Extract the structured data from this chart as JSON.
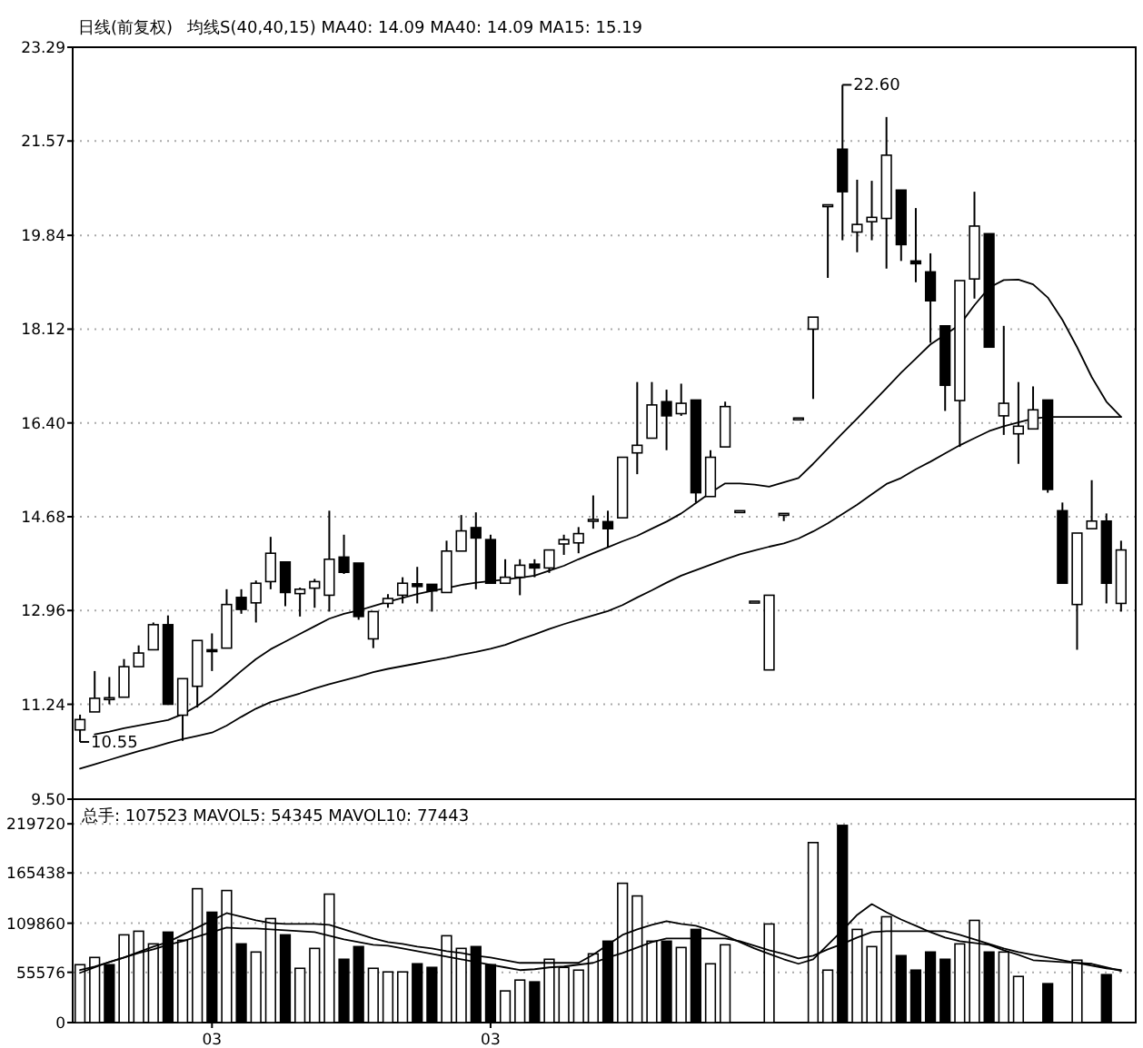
{
  "chart_data": [
    {
      "type": "candlestick",
      "title": "日线(前复权)",
      "subtitle": "均线S(40,40,15) MA40: 14.09 MA40: 14.09 MA15: 15.19",
      "categories": [
        null,
        null,
        null,
        null,
        null,
        null,
        null,
        null,
        null,
        null,
        null,
        null,
        null,
        null,
        null,
        null,
        null,
        null,
        null,
        null,
        null,
        null,
        null,
        null,
        null,
        null,
        null,
        null,
        null,
        null,
        null,
        null,
        null,
        null,
        null,
        null,
        null,
        null,
        null,
        null,
        null,
        null,
        null,
        null,
        null,
        null,
        null,
        null,
        null,
        null,
        null,
        null,
        null,
        null,
        null,
        null,
        null,
        null,
        null,
        null,
        null,
        null,
        null,
        null,
        null,
        null,
        null,
        null,
        null,
        null,
        null,
        null
      ],
      "ohlc": [
        [
          10.77,
          11.05,
          10.55,
          10.96
        ],
        [
          11.1,
          11.85,
          11.1,
          11.35
        ],
        [
          11.33,
          11.74,
          11.24,
          11.36
        ],
        [
          11.37,
          12.07,
          11.37,
          11.93
        ],
        [
          11.93,
          12.32,
          11.93,
          12.18
        ],
        [
          12.24,
          12.74,
          12.24,
          12.7
        ],
        [
          12.7,
          12.87,
          11.24,
          11.24
        ],
        [
          11.04,
          11.71,
          10.57,
          11.71
        ],
        [
          11.57,
          12.41,
          11.18,
          12.41
        ],
        [
          12.24,
          12.54,
          11.85,
          12.21
        ],
        [
          12.27,
          13.35,
          12.27,
          13.07
        ],
        [
          13.2,
          13.35,
          12.9,
          12.98
        ],
        [
          13.1,
          13.51,
          12.74,
          13.46
        ],
        [
          13.49,
          14.31,
          13.35,
          14.01
        ],
        [
          13.85,
          13.85,
          13.04,
          13.29
        ],
        [
          13.27,
          13.38,
          12.85,
          13.35
        ],
        [
          13.37,
          13.54,
          13.01,
          13.49
        ],
        [
          13.24,
          14.79,
          12.94,
          13.9
        ],
        [
          13.94,
          14.35,
          13.63,
          13.66
        ],
        [
          13.83,
          13.83,
          12.79,
          12.85
        ],
        [
          12.44,
          12.94,
          12.27,
          12.94
        ],
        [
          13.09,
          13.26,
          13.01,
          13.18
        ],
        [
          13.24,
          13.57,
          13.09,
          13.46
        ],
        [
          13.45,
          13.76,
          13.09,
          13.4
        ],
        [
          13.44,
          13.44,
          12.94,
          13.32
        ],
        [
          13.29,
          14.24,
          13.29,
          14.05
        ],
        [
          14.05,
          14.71,
          14.05,
          14.42
        ],
        [
          14.48,
          14.76,
          13.35,
          14.29
        ],
        [
          14.26,
          14.35,
          13.46,
          13.46
        ],
        [
          13.46,
          13.9,
          13.46,
          13.57
        ],
        [
          13.57,
          13.9,
          13.24,
          13.79
        ],
        [
          13.81,
          13.9,
          13.57,
          13.74
        ],
        [
          13.74,
          14.07,
          13.65,
          14.07
        ],
        [
          14.18,
          14.35,
          13.98,
          14.26
        ],
        [
          14.2,
          14.49,
          14.01,
          14.37
        ],
        [
          14.62,
          15.07,
          14.46,
          14.63
        ],
        [
          14.59,
          14.79,
          14.12,
          14.46
        ],
        [
          14.66,
          15.77,
          14.66,
          15.77
        ],
        [
          15.85,
          17.15,
          15.46,
          15.99
        ],
        [
          16.12,
          17.15,
          16.12,
          16.73
        ],
        [
          16.79,
          17.01,
          15.9,
          16.53
        ],
        [
          16.57,
          17.12,
          16.53,
          16.76
        ],
        [
          16.82,
          16.82,
          14.94,
          15.12
        ],
        [
          15.05,
          15.9,
          15.05,
          15.77
        ],
        [
          15.96,
          16.79,
          15.96,
          16.7
        ],
        [
          14.79,
          14.79,
          14.79,
          14.79
        ],
        [
          13.13,
          13.13,
          13.13,
          13.13
        ],
        [
          11.87,
          13.24,
          11.87,
          13.24
        ],
        [
          14.74,
          14.74,
          14.6,
          14.74
        ],
        [
          16.49,
          16.49,
          16.49,
          16.49
        ],
        [
          18.12,
          18.34,
          16.84,
          18.34
        ],
        [
          20.4,
          20.4,
          19.06,
          20.4
        ],
        [
          21.42,
          22.6,
          19.75,
          20.64
        ],
        [
          19.9,
          20.86,
          19.53,
          20.04
        ],
        [
          20.09,
          20.84,
          19.75,
          20.17
        ],
        [
          20.15,
          22.01,
          19.23,
          21.31
        ],
        [
          20.67,
          20.67,
          19.37,
          19.67
        ],
        [
          19.37,
          20.34,
          18.98,
          19.32
        ],
        [
          19.17,
          19.51,
          17.87,
          18.64
        ],
        [
          18.18,
          18.18,
          16.62,
          17.09
        ],
        [
          16.81,
          19.01,
          15.96,
          19.01
        ],
        [
          19.04,
          20.64,
          18.68,
          20.01
        ],
        [
          19.87,
          19.87,
          17.79,
          17.79
        ],
        [
          16.53,
          18.18,
          16.18,
          16.76
        ],
        [
          16.2,
          17.15,
          15.65,
          16.34
        ],
        [
          16.29,
          17.07,
          16.29,
          16.64
        ],
        [
          16.82,
          16.82,
          15.12,
          15.18
        ],
        [
          14.79,
          14.94,
          13.46,
          13.46
        ],
        [
          13.07,
          14.38,
          12.24,
          14.38
        ],
        [
          14.46,
          15.35,
          14.46,
          14.6
        ],
        [
          14.6,
          14.74,
          13.09,
          13.46
        ],
        [
          13.09,
          14.24,
          12.94,
          14.07
        ]
      ],
      "series": [
        {
          "type": "line",
          "color": "#000000",
          "values": [
            null,
            10.69,
            10.74,
            10.8,
            10.85,
            10.9,
            10.95,
            11.06,
            11.21,
            11.4,
            11.62,
            11.85,
            12.07,
            12.25,
            12.39,
            12.53,
            12.67,
            12.81,
            12.9,
            12.96,
            13.04,
            13.12,
            13.19,
            13.26,
            13.32,
            13.37,
            13.43,
            13.47,
            13.5,
            13.53,
            13.56,
            13.6,
            13.69,
            13.78,
            13.9,
            14.01,
            14.12,
            14.23,
            14.33,
            14.46,
            14.59,
            14.74,
            14.93,
            15.12,
            15.29,
            15.29,
            15.27,
            15.23,
            15.31,
            15.39,
            15.65,
            15.93,
            16.21,
            16.48,
            16.76,
            17.04,
            17.32,
            17.58,
            17.84,
            18.02,
            18.2,
            18.56,
            18.88,
            19.02,
            19.03,
            18.94,
            18.7,
            18.29,
            17.79,
            17.24,
            16.79,
            16.51
          ]
        },
        {
          "type": "line",
          "color": "#000000",
          "values": [
            10.06,
            10.14,
            10.22,
            10.3,
            10.38,
            10.45,
            10.53,
            10.6,
            10.66,
            10.72,
            10.85,
            11.01,
            11.16,
            11.28,
            11.36,
            11.44,
            11.53,
            11.61,
            11.68,
            11.75,
            11.83,
            11.89,
            11.94,
            11.99,
            12.04,
            12.09,
            12.15,
            12.2,
            12.26,
            12.33,
            12.43,
            12.52,
            12.62,
            12.71,
            12.79,
            12.87,
            12.95,
            13.06,
            13.2,
            13.33,
            13.47,
            13.6,
            13.7,
            13.8,
            13.9,
            13.99,
            14.06,
            14.13,
            14.19,
            14.28,
            14.41,
            14.56,
            14.73,
            14.9,
            15.09,
            15.28,
            15.39,
            15.55,
            15.69,
            15.84,
            15.99,
            16.12,
            16.25,
            16.34,
            16.41,
            16.48,
            16.51,
            16.51,
            16.51,
            16.51,
            16.51,
            16.51
          ]
        }
      ],
      "ylim": [
        9.5,
        23.29
      ],
      "yticks": [
        {
          "value": 9.5,
          "label": "9.50"
        },
        11.24,
        12.96,
        14.68,
        {
          "value": 16.4,
          "label": "16.40"
        },
        18.12,
        19.84,
        21.57,
        23.29
      ],
      "grid": "y",
      "tick_labels": "y",
      "annotations": [
        "22.60",
        "10.55"
      ]
    },
    {
      "type": "bar",
      "title": "总手: 107523 MAVOL5: 54345 MAVOL10: 77443",
      "categories": [
        null,
        null,
        null,
        null,
        null,
        null,
        null,
        null,
        null,
        "03",
        null,
        null,
        null,
        null,
        null,
        null,
        null,
        null,
        null,
        null,
        null,
        null,
        null,
        null,
        null,
        null,
        null,
        null,
        "03",
        null,
        null,
        null,
        null,
        null,
        null,
        null,
        null,
        null,
        null,
        null,
        null,
        null,
        null,
        null,
        null,
        null,
        null,
        null,
        null,
        null,
        null,
        null,
        null,
        null,
        null,
        null,
        null,
        null,
        null,
        null,
        null,
        null,
        null,
        null,
        null,
        null,
        null,
        null,
        null,
        null,
        null,
        null
      ],
      "series": [
        {
          "type": "bar",
          "values": [
            64000,
            72000,
            64000,
            97000,
            101000,
            87000,
            100000,
            91000,
            148000,
            122000,
            146000,
            87000,
            78000,
            115000,
            97000,
            60000,
            82000,
            142000,
            70000,
            84000,
            60000,
            56000,
            56000,
            65000,
            61000,
            96000,
            82000,
            84000,
            64000,
            35000,
            47000,
            45000,
            70000,
            61000,
            58000,
            76000,
            90000,
            154000,
            140000,
            90000,
            90000,
            83000,
            103000,
            65000,
            86000,
            null,
            null,
            109000,
            null,
            null,
            199000,
            58000,
            218000,
            103000,
            84000,
            117000,
            74000,
            58000,
            78000,
            70000,
            87000,
            113000,
            78000,
            78000,
            51000,
            null,
            43000,
            null,
            69000,
            null,
            53000,
            null
          ],
          "colors": [
            "#ffffff",
            "#ffffff",
            "#000000",
            "#ffffff",
            "#ffffff",
            "#ffffff",
            "#000000",
            "#ffffff",
            "#ffffff",
            "#000000",
            "#ffffff",
            "#000000",
            "#ffffff",
            "#ffffff",
            "#000000",
            "#ffffff",
            "#ffffff",
            "#ffffff",
            "#000000",
            "#000000",
            "#ffffff",
            "#ffffff",
            "#ffffff",
            "#000000",
            "#000000",
            "#ffffff",
            "#ffffff",
            "#000000",
            "#000000",
            "#ffffff",
            "#ffffff",
            "#000000",
            "#ffffff",
            "#ffffff",
            "#ffffff",
            "#ffffff",
            "#000000",
            "#ffffff",
            "#ffffff",
            "#ffffff",
            "#000000",
            "#ffffff",
            "#000000",
            "#ffffff",
            "#ffffff",
            null,
            null,
            "#ffffff",
            null,
            null,
            "#ffffff",
            "#ffffff",
            "#000000",
            "#ffffff",
            "#ffffff",
            "#ffffff",
            "#000000",
            "#000000",
            "#000000",
            "#000000",
            "#ffffff",
            "#ffffff",
            "#000000",
            "#ffffff",
            "#ffffff",
            null,
            "#000000",
            null,
            "#ffffff",
            null,
            "#000000",
            null
          ]
        },
        {
          "type": "line",
          "color": "#000000",
          "values": [
            55000,
            61000,
            67000,
            72000,
            78000,
            84000,
            89000,
            97000,
            105000,
            113000,
            121000,
            117000,
            113000,
            110000,
            109000,
            109000,
            109000,
            108000,
            103000,
            98000,
            93000,
            89000,
            87000,
            84000,
            82000,
            79000,
            77000,
            74000,
            72000,
            69000,
            66000,
            66000,
            66000,
            66000,
            66000,
            75000,
            86000,
            97000,
            103000,
            108000,
            112000,
            109000,
            107000,
            102000,
            96000,
            89000,
            82000,
            76000,
            70000,
            65000,
            70000,
            86000,
            102000,
            119000,
            131000,
            122000,
            114000,
            107000,
            100000,
            94000,
            90000,
            88000,
            86000,
            80000,
            75000,
            69000,
            68000,
            67000,
            66000,
            65000,
            61000,
            57000
          ]
        },
        {
          "type": "line",
          "color": "#000000",
          "values": [
            58000,
            62000,
            67000,
            72000,
            77000,
            81000,
            86000,
            90000,
            95000,
            100000,
            105000,
            104000,
            104000,
            103000,
            102000,
            101000,
            100000,
            96000,
            92000,
            89000,
            86000,
            85000,
            82000,
            79000,
            76000,
            73000,
            70000,
            67000,
            64000,
            61000,
            58000,
            59000,
            61000,
            62000,
            64000,
            66000,
            72000,
            77000,
            83000,
            89000,
            93000,
            93000,
            93000,
            93000,
            93000,
            90000,
            85000,
            80000,
            76000,
            71000,
            74000,
            81000,
            87000,
            94000,
            100000,
            101000,
            101000,
            101000,
            101000,
            101000,
            97000,
            92000,
            87000,
            82000,
            78000,
            75000,
            72000,
            69000,
            66000,
            63000,
            60000,
            58000
          ]
        }
      ],
      "ylim": [
        0,
        247000
      ],
      "yticks": [
        0,
        55576,
        109860,
        165438,
        219720
      ],
      "grid": "y"
    }
  ]
}
